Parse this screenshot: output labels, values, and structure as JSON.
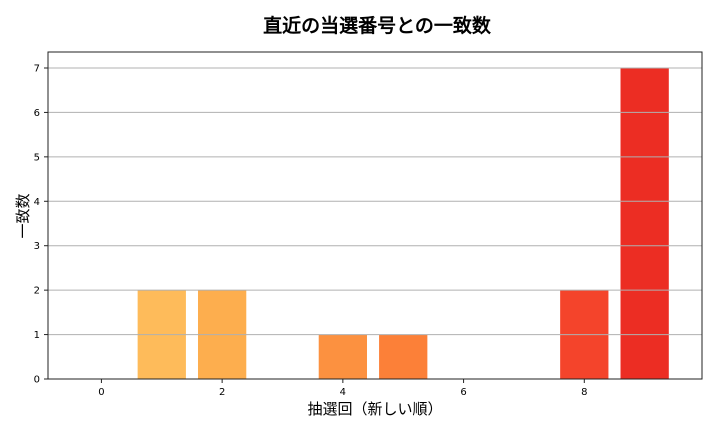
{
  "chart_data": {
    "type": "bar",
    "title": "直近の当選番号との一致数",
    "xlabel": "抽選回（新しい順）",
    "ylabel": "一致数",
    "x": [
      0,
      1,
      2,
      3,
      4,
      5,
      6,
      7,
      8,
      9
    ],
    "values": [
      0,
      2,
      2,
      0,
      1,
      1,
      0,
      0,
      2,
      7
    ],
    "colors": [
      "#FEC865",
      "#FEBB5A",
      "#FDAE4E",
      "#FC9F46",
      "#FC9140",
      "#FC8038",
      "#F96B32",
      "#F6572E",
      "#F4442B",
      "#EC2D23"
    ],
    "xticks": [
      0,
      2,
      4,
      6,
      8
    ],
    "yticks": [
      0,
      1,
      2,
      3,
      4,
      5,
      6,
      7
    ],
    "xlim": [
      -0.885,
      9.95
    ],
    "ylim": [
      0,
      7.36
    ],
    "grid": "y",
    "legend": "none"
  }
}
